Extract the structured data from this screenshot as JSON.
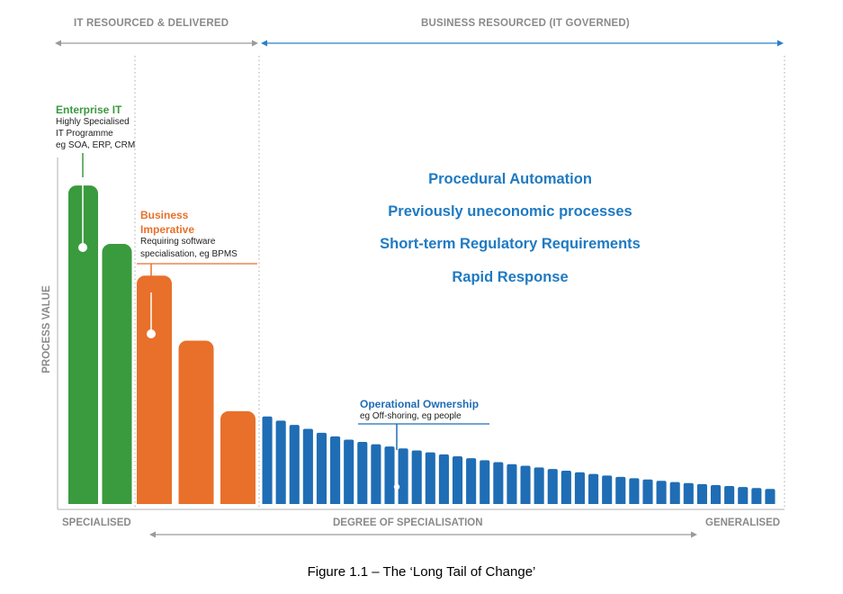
{
  "header": {
    "left_label": "IT RESOURCED & DELIVERED",
    "right_label": "BUSINESS RESOURCED (IT GOVERNED)"
  },
  "axes": {
    "y_label": "PROCESS VALUE",
    "x_left": "SPECIALISED",
    "x_center": "DEGREE OF SPECIALISATION",
    "x_right": "GENERALISED"
  },
  "callouts": {
    "enterprise": {
      "title": "Enterprise IT",
      "lines": [
        "Highly Specialised",
        "IT Programme",
        "eg SOA, ERP, CRM"
      ]
    },
    "business": {
      "title_lines": [
        "Business",
        "Imperative"
      ],
      "lines": [
        "Requiring software",
        "specialisation, eg BPMS"
      ]
    },
    "operational": {
      "title": "Operational Ownership",
      "lines": [
        "eg Off-shoring, eg people"
      ]
    }
  },
  "benefits": [
    "Procedural Automation",
    "Previously uneconomic processes",
    "Short-term Regulatory Requirements",
    "Rapid Response"
  ],
  "caption": "Figure 1.1 – The ‘Long Tail of Change’",
  "colors": {
    "enterprise": "#3a9a3e",
    "business": "#e8702a",
    "operational": "#1f6db5",
    "arrow_grey": "#9a9a9a",
    "arrow_blue": "#2a7fc9",
    "benefit_text": "#1f7ac2"
  },
  "bars": {
    "enterprise_levels": [
      0.975,
      0.796
    ],
    "business_levels": [
      0.699,
      0.5,
      0.284
    ],
    "operational_levels": [
      0.268,
      0.255,
      0.242,
      0.23,
      0.218,
      0.207,
      0.197,
      0.19,
      0.183,
      0.176,
      0.17,
      0.164,
      0.158,
      0.152,
      0.146,
      0.14,
      0.134,
      0.128,
      0.122,
      0.117,
      0.112,
      0.107,
      0.102,
      0.097,
      0.092,
      0.087,
      0.083,
      0.079,
      0.075,
      0.071,
      0.067,
      0.064,
      0.061,
      0.058,
      0.055,
      0.052,
      0.049,
      0.046
    ]
  }
}
